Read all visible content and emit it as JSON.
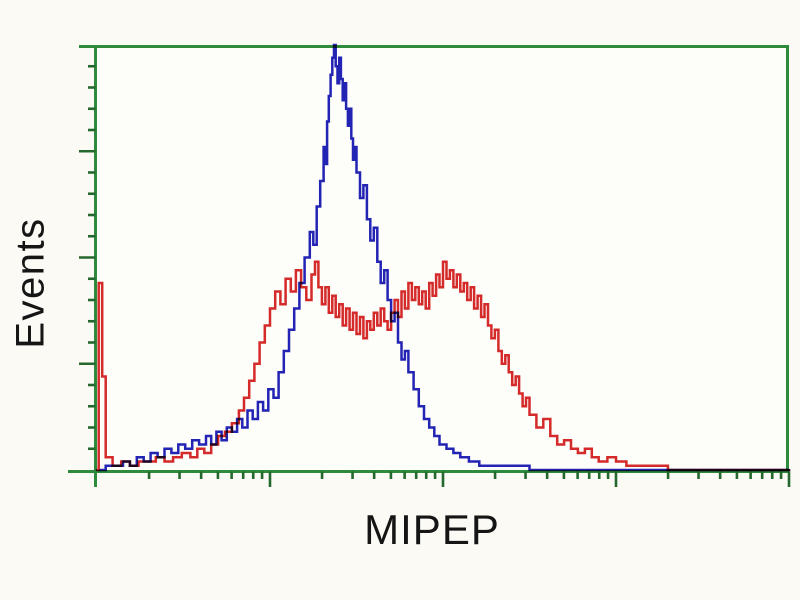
{
  "figure": {
    "background": "#fbfaf5",
    "plot_background": "#fdfdfa"
  },
  "chart_data": {
    "type": "line",
    "subtype": "flow-cytometry-histogram-overlay",
    "title": "",
    "xlabel": "MIPEP",
    "ylabel": "Events",
    "legend": "none-visible",
    "x_axis": {
      "scale": "log",
      "min_exponent": 0,
      "max_exponent": 4,
      "numeric_tick_labels_visible": false
    },
    "y_axis": {
      "scale": "linear",
      "range_relative": [
        0,
        1
      ],
      "numeric_tick_labels_visible": false,
      "major_divisions": 4,
      "minor_ticks_per_major": 5
    },
    "frame_color": "#2e8b3c",
    "tick_color": "#25682e",
    "series": [
      {
        "name": "blue-trace",
        "color": "#2323b8",
        "points": [
          [
            0.02,
            0.0
          ],
          [
            0.05,
            0.01
          ],
          [
            0.1,
            0.01
          ],
          [
            0.15,
            0.02
          ],
          [
            0.19,
            0.01
          ],
          [
            0.23,
            0.03
          ],
          [
            0.27,
            0.02
          ],
          [
            0.31,
            0.04
          ],
          [
            0.35,
            0.03
          ],
          [
            0.39,
            0.05
          ],
          [
            0.43,
            0.04
          ],
          [
            0.47,
            0.06
          ],
          [
            0.51,
            0.05
          ],
          [
            0.55,
            0.07
          ],
          [
            0.59,
            0.06
          ],
          [
            0.63,
            0.08
          ],
          [
            0.66,
            0.06
          ],
          [
            0.69,
            0.09
          ],
          [
            0.72,
            0.07
          ],
          [
            0.75,
            0.1
          ],
          [
            0.78,
            0.09
          ],
          [
            0.81,
            0.12
          ],
          [
            0.84,
            0.1
          ],
          [
            0.87,
            0.14
          ],
          [
            0.9,
            0.12
          ],
          [
            0.93,
            0.16
          ],
          [
            0.96,
            0.14
          ],
          [
            0.99,
            0.19
          ],
          [
            1.02,
            0.17
          ],
          [
            1.05,
            0.23
          ],
          [
            1.08,
            0.28
          ],
          [
            1.11,
            0.33
          ],
          [
            1.14,
            0.38
          ],
          [
            1.17,
            0.44
          ],
          [
            1.2,
            0.5
          ],
          [
            1.23,
            0.56
          ],
          [
            1.25,
            0.53
          ],
          [
            1.27,
            0.62
          ],
          [
            1.29,
            0.68
          ],
          [
            1.31,
            0.76
          ],
          [
            1.32,
            0.72
          ],
          [
            1.33,
            0.82
          ],
          [
            1.34,
            0.88
          ],
          [
            1.35,
            0.93
          ],
          [
            1.36,
            0.97
          ],
          [
            1.37,
            1.0
          ],
          [
            1.38,
            0.95
          ],
          [
            1.39,
            0.91
          ],
          [
            1.4,
            0.97
          ],
          [
            1.41,
            0.92
          ],
          [
            1.42,
            0.87
          ],
          [
            1.43,
            0.91
          ],
          [
            1.44,
            0.85
          ],
          [
            1.45,
            0.81
          ],
          [
            1.46,
            0.85
          ],
          [
            1.47,
            0.78
          ],
          [
            1.48,
            0.73
          ],
          [
            1.49,
            0.76
          ],
          [
            1.5,
            0.7
          ],
          [
            1.52,
            0.64
          ],
          [
            1.54,
            0.67
          ],
          [
            1.56,
            0.59
          ],
          [
            1.58,
            0.54
          ],
          [
            1.6,
            0.57
          ],
          [
            1.62,
            0.49
          ],
          [
            1.64,
            0.44
          ],
          [
            1.66,
            0.47
          ],
          [
            1.68,
            0.4
          ],
          [
            1.7,
            0.35
          ],
          [
            1.72,
            0.37
          ],
          [
            1.74,
            0.3
          ],
          [
            1.76,
            0.26
          ],
          [
            1.78,
            0.28
          ],
          [
            1.8,
            0.23
          ],
          [
            1.83,
            0.19
          ],
          [
            1.86,
            0.15
          ],
          [
            1.89,
            0.12
          ],
          [
            1.92,
            0.1
          ],
          [
            1.95,
            0.08
          ],
          [
            1.98,
            0.06
          ],
          [
            2.02,
            0.05
          ],
          [
            2.06,
            0.04
          ],
          [
            2.1,
            0.03
          ],
          [
            2.15,
            0.02
          ],
          [
            2.21,
            0.01
          ],
          [
            2.28,
            0.01
          ],
          [
            2.38,
            0.01
          ],
          [
            2.5,
            0.0
          ],
          [
            2.7,
            0.0
          ],
          [
            3.0,
            0.0
          ],
          [
            3.5,
            0.0
          ],
          [
            4.0,
            0.0
          ]
        ]
      },
      {
        "name": "red-trace",
        "color": "#d62a2a",
        "points": [
          [
            0.0,
            0.0
          ],
          [
            0.01,
            0.44
          ],
          [
            0.03,
            0.22
          ],
          [
            0.05,
            0.03
          ],
          [
            0.09,
            0.01
          ],
          [
            0.14,
            0.02
          ],
          [
            0.19,
            0.01
          ],
          [
            0.24,
            0.02
          ],
          [
            0.29,
            0.02
          ],
          [
            0.34,
            0.03
          ],
          [
            0.39,
            0.02
          ],
          [
            0.44,
            0.03
          ],
          [
            0.49,
            0.04
          ],
          [
            0.54,
            0.03
          ],
          [
            0.58,
            0.05
          ],
          [
            0.62,
            0.04
          ],
          [
            0.66,
            0.06
          ],
          [
            0.7,
            0.08
          ],
          [
            0.74,
            0.09
          ],
          [
            0.78,
            0.11
          ],
          [
            0.82,
            0.14
          ],
          [
            0.85,
            0.17
          ],
          [
            0.88,
            0.21
          ],
          [
            0.91,
            0.25
          ],
          [
            0.94,
            0.3
          ],
          [
            0.97,
            0.34
          ],
          [
            1.0,
            0.38
          ],
          [
            1.03,
            0.42
          ],
          [
            1.06,
            0.39
          ],
          [
            1.09,
            0.45
          ],
          [
            1.12,
            0.42
          ],
          [
            1.15,
            0.47
          ],
          [
            1.18,
            0.43
          ],
          [
            1.21,
            0.4
          ],
          [
            1.24,
            0.46
          ],
          [
            1.26,
            0.49
          ],
          [
            1.28,
            0.43
          ],
          [
            1.3,
            0.39
          ],
          [
            1.32,
            0.43
          ],
          [
            1.34,
            0.37
          ],
          [
            1.36,
            0.41
          ],
          [
            1.38,
            0.36
          ],
          [
            1.4,
            0.39
          ],
          [
            1.42,
            0.34
          ],
          [
            1.44,
            0.38
          ],
          [
            1.46,
            0.33
          ],
          [
            1.48,
            0.37
          ],
          [
            1.5,
            0.32
          ],
          [
            1.52,
            0.36
          ],
          [
            1.54,
            0.31
          ],
          [
            1.56,
            0.35
          ],
          [
            1.58,
            0.33
          ],
          [
            1.6,
            0.37
          ],
          [
            1.62,
            0.34
          ],
          [
            1.64,
            0.38
          ],
          [
            1.66,
            0.35
          ],
          [
            1.68,
            0.33
          ],
          [
            1.7,
            0.37
          ],
          [
            1.72,
            0.4
          ],
          [
            1.74,
            0.36
          ],
          [
            1.76,
            0.42
          ],
          [
            1.78,
            0.38
          ],
          [
            1.8,
            0.44
          ],
          [
            1.82,
            0.4
          ],
          [
            1.84,
            0.43
          ],
          [
            1.86,
            0.39
          ],
          [
            1.88,
            0.42
          ],
          [
            1.9,
            0.38
          ],
          [
            1.92,
            0.44
          ],
          [
            1.94,
            0.41
          ],
          [
            1.96,
            0.46
          ],
          [
            1.98,
            0.43
          ],
          [
            2.0,
            0.49
          ],
          [
            2.02,
            0.45
          ],
          [
            2.04,
            0.47
          ],
          [
            2.06,
            0.43
          ],
          [
            2.08,
            0.46
          ],
          [
            2.1,
            0.42
          ],
          [
            2.12,
            0.44
          ],
          [
            2.14,
            0.4
          ],
          [
            2.16,
            0.43
          ],
          [
            2.18,
            0.38
          ],
          [
            2.2,
            0.41
          ],
          [
            2.22,
            0.36
          ],
          [
            2.24,
            0.39
          ],
          [
            2.26,
            0.34
          ],
          [
            2.28,
            0.31
          ],
          [
            2.3,
            0.33
          ],
          [
            2.32,
            0.28
          ],
          [
            2.34,
            0.25
          ],
          [
            2.36,
            0.27
          ],
          [
            2.38,
            0.23
          ],
          [
            2.4,
            0.2
          ],
          [
            2.42,
            0.22
          ],
          [
            2.44,
            0.18
          ],
          [
            2.46,
            0.15
          ],
          [
            2.48,
            0.17
          ],
          [
            2.5,
            0.13
          ],
          [
            2.54,
            0.1
          ],
          [
            2.58,
            0.12
          ],
          [
            2.62,
            0.08
          ],
          [
            2.66,
            0.06
          ],
          [
            2.7,
            0.07
          ],
          [
            2.74,
            0.05
          ],
          [
            2.78,
            0.04
          ],
          [
            2.82,
            0.05
          ],
          [
            2.86,
            0.03
          ],
          [
            2.9,
            0.02
          ],
          [
            2.95,
            0.03
          ],
          [
            3.0,
            0.02
          ],
          [
            3.06,
            0.01
          ],
          [
            3.12,
            0.01
          ],
          [
            3.2,
            0.01
          ],
          [
            3.3,
            0.0
          ],
          [
            3.5,
            0.0
          ],
          [
            3.75,
            0.0
          ],
          [
            4.0,
            0.0
          ]
        ]
      }
    ],
    "layout_hints": {
      "grid": false,
      "frame": "top-right-left-bottom axes in green, ticks outside",
      "x_major_ticks_at_exponents": [
        0,
        1,
        2,
        3,
        4
      ],
      "x_minor_ticks": "log positions 2-9 each decade"
    }
  }
}
